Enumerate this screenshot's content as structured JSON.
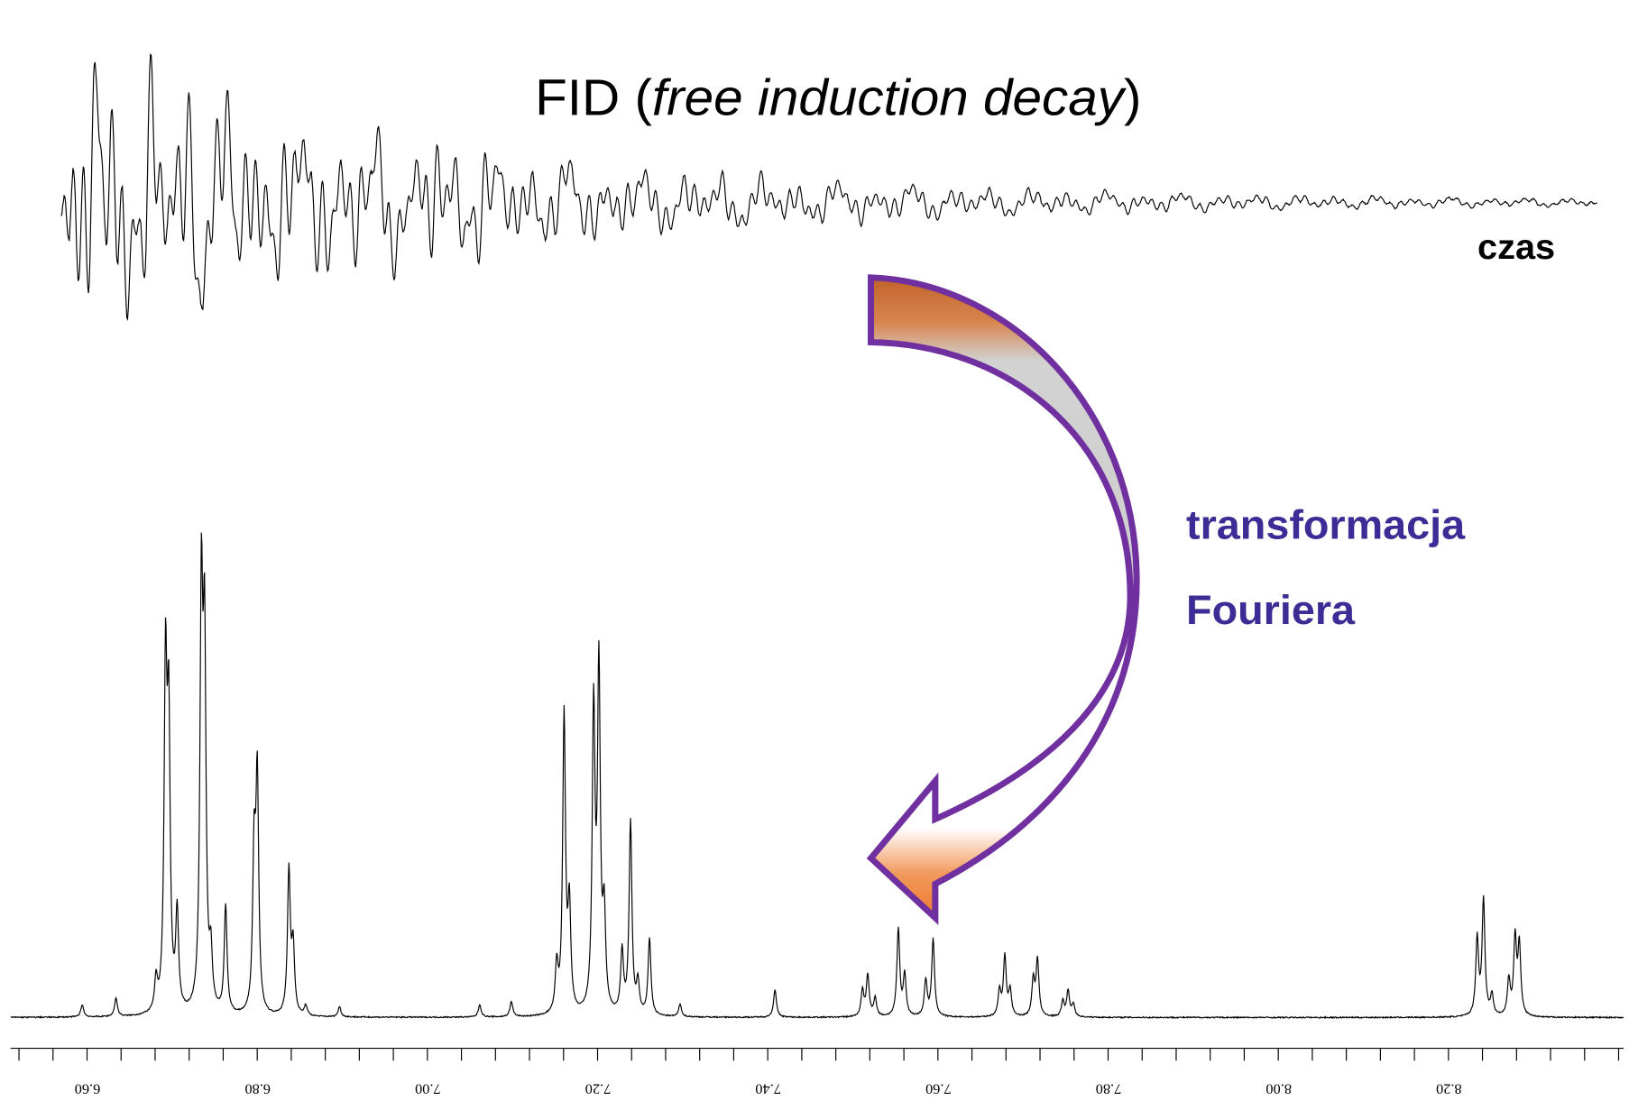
{
  "title": {
    "prefix": "FID (",
    "italic": "free induction decay",
    "suffix": ")"
  },
  "time_axis_label": "czas",
  "transform_label": {
    "line1": "transformacja",
    "line2": "Fouriera"
  },
  "spectrum_axis": {
    "labels": [
      "6.60",
      "6.80",
      "7.00",
      "7.20",
      "7.40",
      "7.60",
      "7.80",
      "8.00",
      "8.20"
    ]
  }
}
